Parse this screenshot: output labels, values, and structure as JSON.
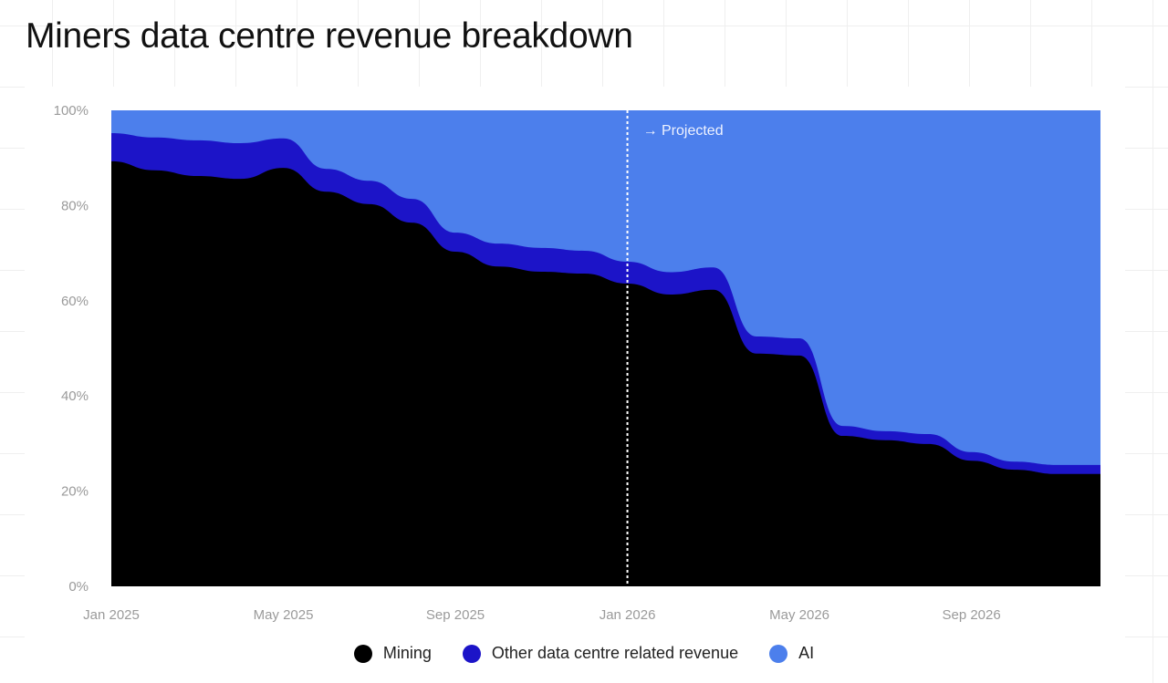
{
  "chart_data": {
    "type": "area",
    "stacked": true,
    "normalized": true,
    "title": "Miners data centre revenue breakdown",
    "x": [
      "Jan 2025",
      "Feb 2025",
      "Mar 2025",
      "Apr 2025",
      "May 2025",
      "Jun 2025",
      "Jul 2025",
      "Aug 2025",
      "Sep 2025",
      "Oct 2025",
      "Nov 2025",
      "Dec 2025",
      "Jan 2026",
      "Feb 2026",
      "Mar 2026",
      "Apr 2026",
      "May 2026",
      "Jun 2026",
      "Jul 2026",
      "Aug 2026",
      "Sep 2026",
      "Oct 2026",
      "Nov 2026",
      "Dec 2026"
    ],
    "x_ticks": [
      "Jan 2025",
      "May 2025",
      "Sep 2025",
      "Jan 2026",
      "May 2026",
      "Sep 2026"
    ],
    "y_ticks": [
      "0%",
      "20%",
      "40%",
      "60%",
      "80%",
      "100%"
    ],
    "ylim": [
      0,
      100
    ],
    "series": [
      {
        "name": "Mining",
        "color": "#000000",
        "values": [
          89.3,
          87.4,
          86.2,
          85.6,
          87.9,
          82.9,
          80.3,
          76.4,
          70.3,
          67.2,
          66.1,
          65.7,
          63.6,
          61.3,
          62.3,
          48.9,
          48.5,
          31.6,
          30.7,
          29.9,
          26.4,
          24.5,
          23.6,
          23.6
        ]
      },
      {
        "name": "Other data centre related revenue",
        "color": "#1c14c8",
        "values": [
          5.9,
          6.9,
          7.5,
          7.5,
          6.2,
          4.8,
          4.9,
          5.0,
          4.0,
          4.8,
          5.0,
          4.8,
          4.6,
          4.7,
          4.7,
          3.6,
          3.6,
          2.1,
          1.9,
          2.1,
          1.8,
          1.7,
          1.9,
          1.9
        ]
      },
      {
        "name": "AI",
        "color": "#4c7fec",
        "values": [
          4.8,
          5.7,
          6.3,
          6.9,
          5.9,
          12.3,
          14.8,
          18.6,
          25.7,
          28.0,
          28.9,
          29.5,
          31.8,
          34.0,
          33.0,
          47.5,
          47.9,
          66.3,
          67.4,
          68.0,
          71.8,
          73.8,
          74.5,
          74.5
        ]
      }
    ],
    "annotation": {
      "label": "→ Projected",
      "at": "Jan 2026"
    },
    "grid": false,
    "legend_placement": "bottom"
  }
}
